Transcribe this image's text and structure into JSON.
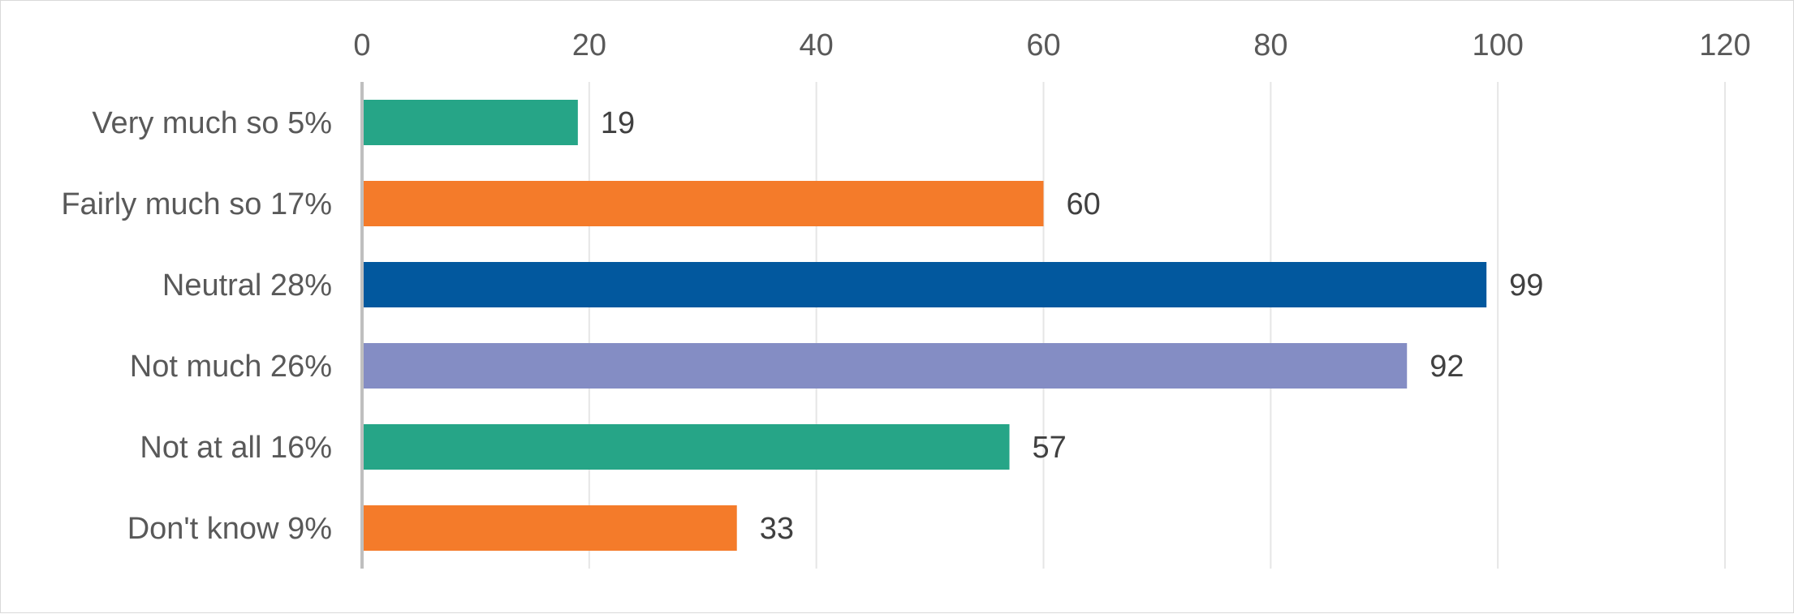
{
  "chart_data": {
    "type": "bar",
    "orientation": "horizontal",
    "categories": [
      "Very much so 5%",
      "Fairly much so 17%",
      "Neutral 28%",
      "Not much 26%",
      "Not at all  16%",
      "Don't know 9%"
    ],
    "values": [
      19,
      60,
      99,
      92,
      57,
      33
    ],
    "data_labels": [
      "19",
      "60",
      "99",
      "92",
      "57",
      "33"
    ],
    "colors": [
      "#26a587",
      "#f47b2a",
      "#02589e",
      "#848dc4",
      "#26a587",
      "#f47b2a"
    ],
    "title": "",
    "xlabel": "",
    "ylabel": "",
    "xlim": [
      0,
      120
    ],
    "x_ticks": [
      "0",
      "20",
      "40",
      "60",
      "80",
      "100",
      "120"
    ],
    "x_axis_position": "top",
    "grid": true,
    "legend": "none"
  }
}
